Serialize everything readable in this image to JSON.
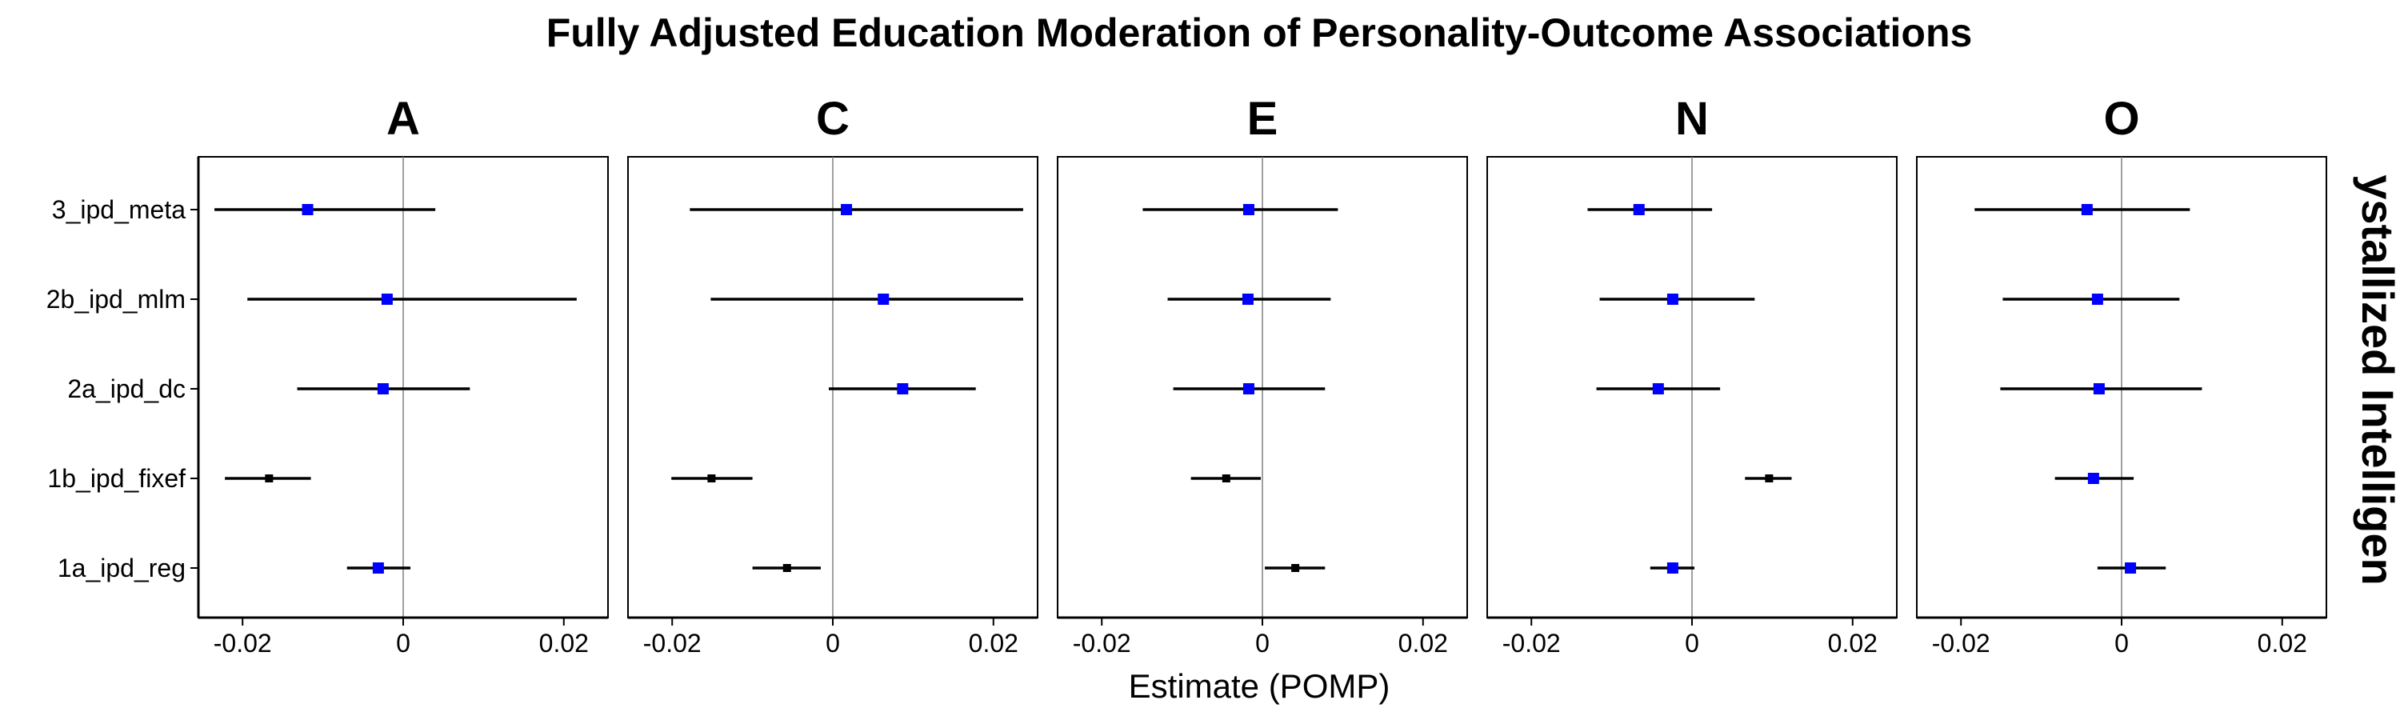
{
  "title": "Fully Adjusted Education Moderation of Personality-Outcome Associations",
  "xlabel": "Estimate (POMP)",
  "strip_right": "ystallized Intelligen",
  "colors": {
    "significant": "#0000ff",
    "nonsignificant": "#000000",
    "refline": "#808080",
    "panel_border": "#000000"
  },
  "chart_data": {
    "type": "scatter",
    "subtype": "forest-plot",
    "xlim": [
      -0.0255,
      0.0255
    ],
    "x_ticks": [
      -0.02,
      0,
      0.02
    ],
    "x_tick_labels": [
      "-0.02",
      "0",
      "0.02"
    ],
    "categories": [
      "3_ipd_meta",
      "2b_ipd_mlm",
      "2a_ipd_dc",
      "1b_ipd_fixef",
      "1a_ipd_reg"
    ],
    "reference_line": 0,
    "grid": false,
    "panels": [
      {
        "label": "A",
        "estimates": [
          {
            "model": "3_ipd_meta",
            "est": -0.0119,
            "lo": -0.0235,
            "hi": 0.004,
            "sig": true
          },
          {
            "model": "2b_ipd_mlm",
            "est": -0.002,
            "lo": -0.0194,
            "hi": 0.0216,
            "sig": true
          },
          {
            "model": "2a_ipd_dc",
            "est": -0.0025,
            "lo": -0.0132,
            "hi": 0.0083,
            "sig": true
          },
          {
            "model": "1b_ipd_fixef",
            "est": -0.0167,
            "lo": -0.0222,
            "hi": -0.0115,
            "sig": false
          },
          {
            "model": "1a_ipd_reg",
            "est": -0.0031,
            "lo": -0.007,
            "hi": 0.0009,
            "sig": true
          }
        ]
      },
      {
        "label": "C",
        "estimates": [
          {
            "model": "3_ipd_meta",
            "est": 0.0017,
            "lo": -0.0178,
            "hi": 0.0237,
            "sig": true
          },
          {
            "model": "2b_ipd_mlm",
            "est": 0.0063,
            "lo": -0.0152,
            "hi": 0.0237,
            "sig": true
          },
          {
            "model": "2a_ipd_dc",
            "est": 0.0087,
            "lo": -0.0005,
            "hi": 0.0178,
            "sig": true
          },
          {
            "model": "1b_ipd_fixef",
            "est": -0.0151,
            "lo": -0.0201,
            "hi": -0.01,
            "sig": false
          },
          {
            "model": "1a_ipd_reg",
            "est": -0.0057,
            "lo": -0.01,
            "hi": -0.0015,
            "sig": false
          }
        ]
      },
      {
        "label": "E",
        "estimates": [
          {
            "model": "3_ipd_meta",
            "est": -0.0017,
            "lo": -0.0149,
            "hi": 0.0094,
            "sig": true
          },
          {
            "model": "2b_ipd_mlm",
            "est": -0.0018,
            "lo": -0.0118,
            "hi": 0.0085,
            "sig": true
          },
          {
            "model": "2a_ipd_dc",
            "est": -0.0017,
            "lo": -0.0111,
            "hi": 0.0078,
            "sig": true
          },
          {
            "model": "1b_ipd_fixef",
            "est": -0.0045,
            "lo": -0.0089,
            "hi": -0.0002,
            "sig": false
          },
          {
            "model": "1a_ipd_reg",
            "est": 0.0041,
            "lo": 0.0003,
            "hi": 0.0078,
            "sig": false
          }
        ]
      },
      {
        "label": "N",
        "estimates": [
          {
            "model": "3_ipd_meta",
            "est": -0.0066,
            "lo": -0.013,
            "hi": 0.0025,
            "sig": true
          },
          {
            "model": "2b_ipd_mlm",
            "est": -0.0024,
            "lo": -0.0115,
            "hi": 0.0078,
            "sig": true
          },
          {
            "model": "2a_ipd_dc",
            "est": -0.0042,
            "lo": -0.0119,
            "hi": 0.0035,
            "sig": true
          },
          {
            "model": "1b_ipd_fixef",
            "est": 0.0096,
            "lo": 0.0066,
            "hi": 0.0124,
            "sig": false
          },
          {
            "model": "1a_ipd_reg",
            "est": -0.0024,
            "lo": -0.0052,
            "hi": 0.0003,
            "sig": true
          }
        ]
      },
      {
        "label": "O",
        "estimates": [
          {
            "model": "3_ipd_meta",
            "est": -0.0043,
            "lo": -0.0183,
            "hi": 0.0085,
            "sig": true
          },
          {
            "model": "2b_ipd_mlm",
            "est": -0.003,
            "lo": -0.0148,
            "hi": 0.0072,
            "sig": true
          },
          {
            "model": "2a_ipd_dc",
            "est": -0.0028,
            "lo": -0.0151,
            "hi": 0.01,
            "sig": true
          },
          {
            "model": "1b_ipd_fixef",
            "est": -0.0035,
            "lo": -0.0083,
            "hi": 0.0015,
            "sig": true
          },
          {
            "model": "1a_ipd_reg",
            "est": 0.0011,
            "lo": -0.003,
            "hi": 0.0055,
            "sig": true
          }
        ]
      }
    ]
  }
}
